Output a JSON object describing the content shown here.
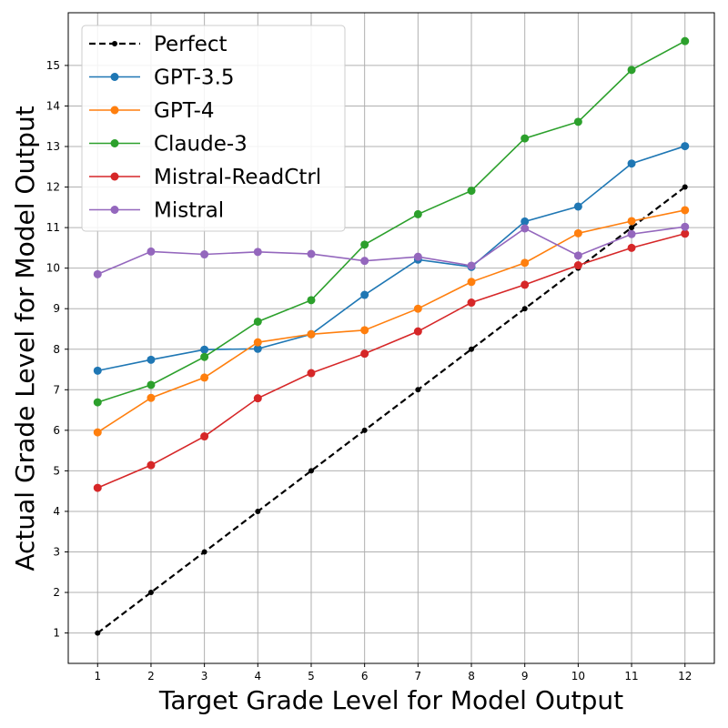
{
  "chart_data": {
    "type": "line",
    "xlabel": "Target Grade Level for Model Output",
    "ylabel": "Actual Grade Level for Model Output",
    "x": [
      1,
      2,
      3,
      4,
      5,
      6,
      7,
      8,
      9,
      10,
      11,
      12
    ],
    "xlim": [
      0.45,
      12.55
    ],
    "ylim": [
      0.25,
      16.3
    ],
    "xticks": [
      "1",
      "2",
      "3",
      "4",
      "5",
      "6",
      "7",
      "8",
      "9",
      "10",
      "11",
      "12"
    ],
    "yticks": [
      "1",
      "2",
      "3",
      "4",
      "5",
      "6",
      "7",
      "8",
      "9",
      "10",
      "11",
      "12",
      "13",
      "14",
      "15"
    ],
    "grid": true,
    "legend_position": "top-left",
    "series": [
      {
        "name": "Perfect",
        "color": "#000000",
        "dashed": true,
        "marker_size": "small",
        "values": [
          1,
          2,
          3,
          4,
          5,
          6,
          7,
          8,
          9,
          10,
          11,
          12
        ]
      },
      {
        "name": "GPT-3.5",
        "color": "#1f77b4",
        "dashed": false,
        "marker_size": "normal",
        "values": [
          7.47,
          7.74,
          7.99,
          8.01,
          8.37,
          9.34,
          10.21,
          10.03,
          11.15,
          11.52,
          12.58,
          13.01
        ]
      },
      {
        "name": "GPT-4",
        "color": "#ff7f0e",
        "dashed": false,
        "marker_size": "normal",
        "values": [
          5.95,
          6.8,
          7.3,
          8.17,
          8.37,
          8.47,
          9.0,
          9.66,
          10.13,
          10.86,
          11.16,
          11.43
        ]
      },
      {
        "name": "Claude-3",
        "color": "#2ca02c",
        "dashed": false,
        "marker_size": "normal",
        "values": [
          6.69,
          7.12,
          7.81,
          8.68,
          9.21,
          10.58,
          11.33,
          11.91,
          13.2,
          13.61,
          14.89,
          15.6
        ]
      },
      {
        "name": "Mistral-ReadCtrl",
        "color": "#d62728",
        "dashed": false,
        "marker_size": "normal",
        "values": [
          4.58,
          5.14,
          5.85,
          6.79,
          7.41,
          7.89,
          8.44,
          9.15,
          9.59,
          10.07,
          10.5,
          10.85
        ]
      },
      {
        "name": "Mistral",
        "color": "#9467bd",
        "dashed": false,
        "marker_size": "normal",
        "values": [
          9.85,
          10.41,
          10.34,
          10.4,
          10.35,
          10.18,
          10.28,
          10.06,
          10.98,
          10.31,
          10.84,
          11.02
        ]
      }
    ]
  }
}
